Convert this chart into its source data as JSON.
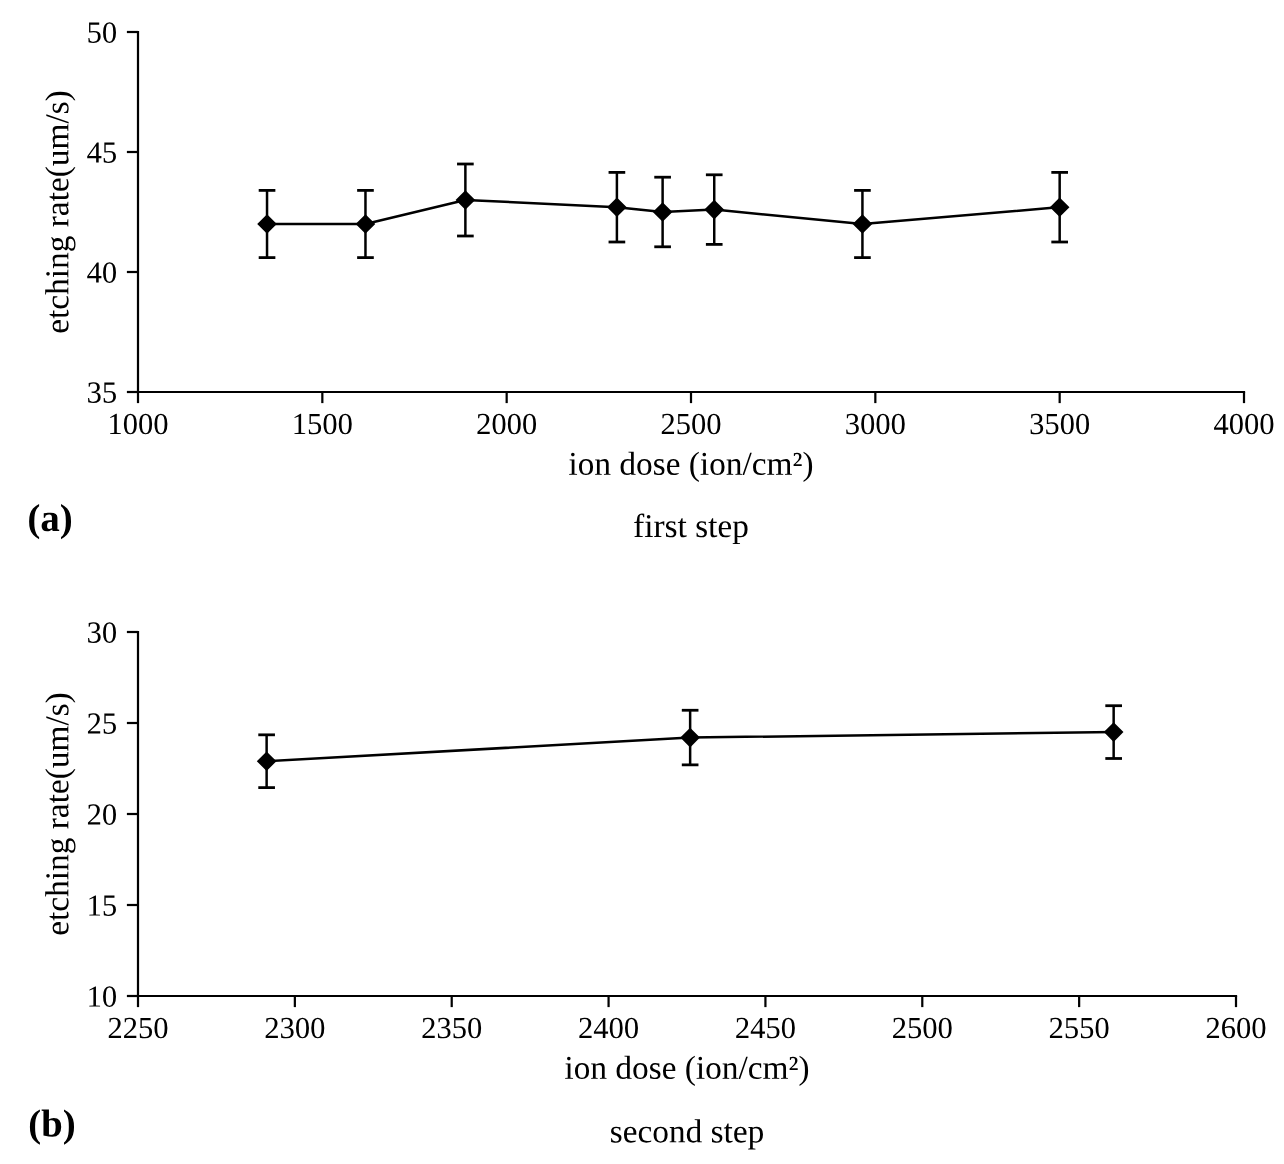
{
  "chart_data": [
    {
      "type": "line",
      "xlabel": "ion dose (ion/cm²)",
      "ylabel": "etching rate(um/s)",
      "annotations": [
        "(a)",
        "first step"
      ],
      "x": [
        1350,
        1617,
        1888,
        2299,
        2423,
        2563,
        2965,
        3500
      ],
      "series": [
        {
          "color": "#000000",
          "values": [
            42.0,
            42.0,
            43.0,
            42.7,
            42.5,
            42.6,
            42.0,
            42.7
          ],
          "errors": [
            1.4,
            1.4,
            1.5,
            1.45,
            1.45,
            1.45,
            1.4,
            1.45
          ]
        }
      ],
      "xlim": [
        1000,
        4000
      ],
      "ylim": [
        35,
        50
      ],
      "xticks": [
        1000,
        1500,
        2000,
        2500,
        3000,
        3500,
        4000
      ],
      "yticks": [
        35,
        40,
        45,
        50
      ],
      "grid": false,
      "legend": false,
      "marker": "diamond",
      "line_style": "solid"
    },
    {
      "type": "line",
      "xlabel": "ion dose (ion/cm²)",
      "ylabel": "etching rate(um/s)",
      "annotations": [
        "(b)",
        "second step"
      ],
      "x": [
        2291,
        2426,
        2561
      ],
      "series": [
        {
          "color": "#000000",
          "values": [
            22.9,
            24.2,
            24.5
          ],
          "errors": [
            1.45,
            1.5,
            1.45
          ]
        }
      ],
      "xlim": [
        2250,
        2600
      ],
      "ylim": [
        10,
        30
      ],
      "xticks": [
        2250,
        2300,
        2350,
        2400,
        2450,
        2500,
        2550,
        2600
      ],
      "yticks": [
        10,
        15,
        20,
        25,
        30
      ],
      "grid": false,
      "legend": false,
      "marker": "diamond",
      "line_style": "solid"
    }
  ]
}
